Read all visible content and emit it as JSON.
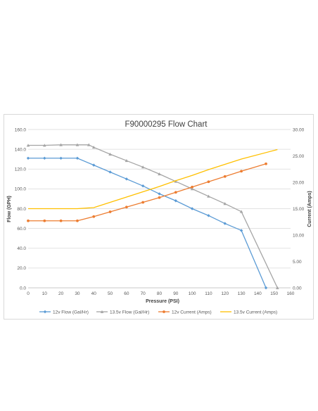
{
  "chart_data": {
    "type": "line",
    "title": "F90000295 Flow Chart",
    "xlabel": "Pressure (PSI)",
    "ylabel": "Flow (GPH)",
    "y2label": "Current (Amps)",
    "xlim": [
      0,
      160
    ],
    "ylim": [
      0,
      160
    ],
    "y2lim": [
      0,
      30
    ],
    "xticks": [
      0,
      10,
      20,
      30,
      40,
      50,
      60,
      70,
      80,
      90,
      100,
      110,
      120,
      130,
      140,
      150,
      160
    ],
    "xtick_labels": [
      "0",
      "10",
      "20",
      "30",
      "40",
      "50",
      "60",
      "70",
      "80",
      "90",
      "100",
      "110",
      "120",
      "130",
      "140",
      "150",
      "160"
    ],
    "yticks": [
      0,
      20,
      40,
      60,
      80,
      100,
      120,
      140,
      160
    ],
    "ytick_labels": [
      "0.0",
      "20.0",
      "40.0",
      "60.0",
      "80.0",
      "100.0",
      "120.0",
      "140.0",
      "160.0"
    ],
    "y2ticks": [
      0,
      5,
      10,
      15,
      20,
      25,
      30
    ],
    "y2tick_labels": [
      "0.00",
      "5.00",
      "10.00",
      "15.00",
      "20.00",
      "25.00",
      "30.00"
    ],
    "grid": true,
    "legend_position": "bottom",
    "series": [
      {
        "name": "12v Flow (Gal/Hr)",
        "axis": "left",
        "marker": "diamond",
        "color": "#5b9bd5",
        "x": [
          0,
          10,
          20,
          30,
          40,
          50,
          60,
          70,
          80,
          90,
          100,
          110,
          120,
          130,
          145
        ],
        "y": [
          131,
          131,
          131,
          131,
          124,
          117,
          110,
          103,
          95,
          88,
          80,
          73,
          65,
          58,
          0
        ]
      },
      {
        "name": "13.5v Flow (Gal/Hr)",
        "axis": "left",
        "marker": "triangle",
        "color": "#a5a5a5",
        "x": [
          0,
          10,
          20,
          30,
          37,
          40,
          50,
          60,
          70,
          80,
          90,
          100,
          110,
          120,
          130,
          152
        ],
        "y": [
          144,
          144,
          144.5,
          144.5,
          144.5,
          142,
          135,
          128.5,
          122,
          115,
          107.5,
          100,
          92.5,
          85,
          77,
          0
        ]
      },
      {
        "name": "12v Current (Amps)",
        "axis": "right",
        "marker": "circle",
        "color": "#ed7d31",
        "x": [
          0,
          10,
          20,
          30,
          40,
          50,
          60,
          70,
          80,
          90,
          100,
          110,
          120,
          130,
          145
        ],
        "y": [
          12.7,
          12.7,
          12.7,
          12.7,
          13.5,
          14.4,
          15.3,
          16.2,
          17.1,
          18.1,
          19.1,
          20.1,
          21.1,
          22.1,
          23.5
        ]
      },
      {
        "name": "13.5v Current (Amps)",
        "axis": "right",
        "marker": "none",
        "color": "#ffc000",
        "x": [
          0,
          10,
          20,
          30,
          40,
          50,
          60,
          70,
          80,
          90,
          100,
          110,
          120,
          130,
          152
        ],
        "y": [
          15,
          15,
          15,
          15,
          15.2,
          16.2,
          17.2,
          18.2,
          19.2,
          20.3,
          21.3,
          22.4,
          23.4,
          24.4,
          26.2
        ]
      }
    ]
  }
}
